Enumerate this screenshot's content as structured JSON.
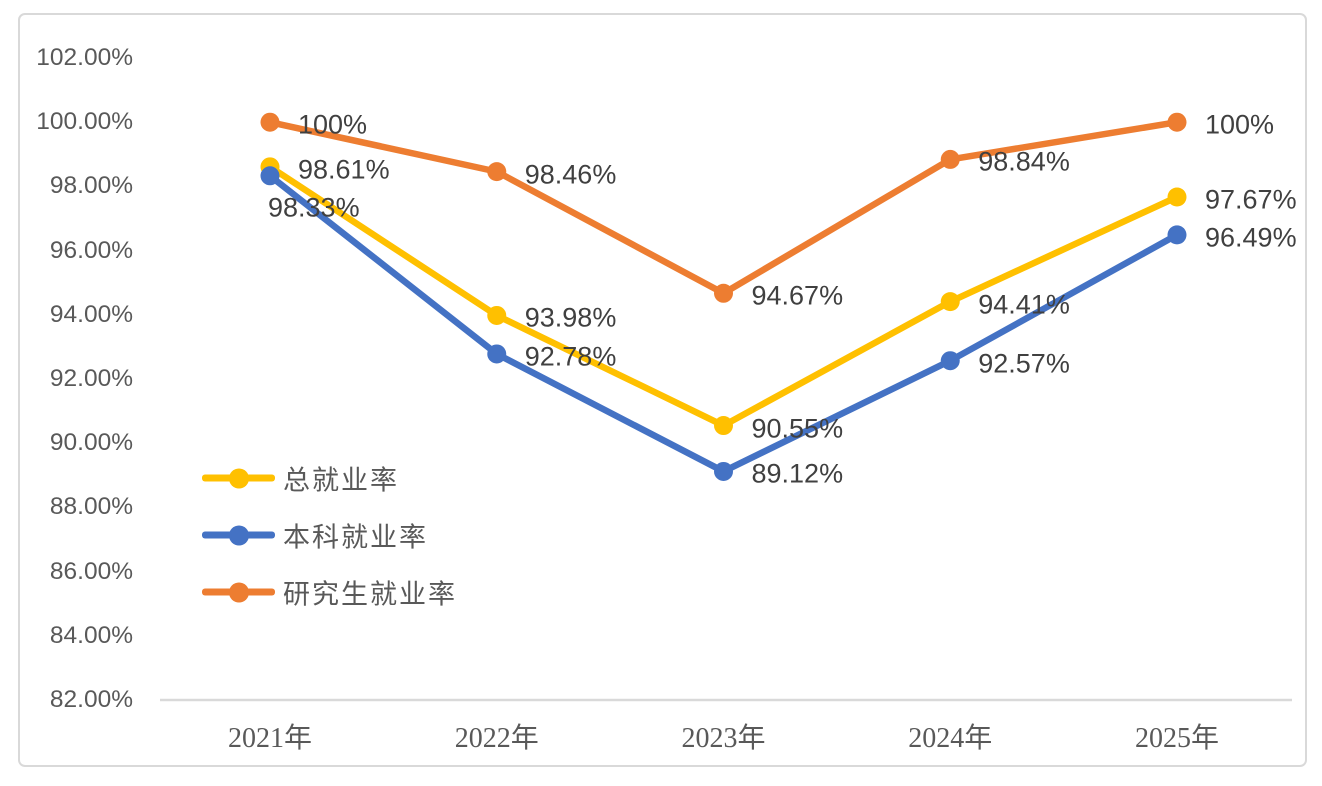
{
  "chart_data": {
    "type": "line",
    "title": "",
    "categories": [
      "2021年",
      "2022年",
      "2023年",
      "2024年",
      "2025年"
    ],
    "series": [
      {
        "name": "总就业率",
        "color": "#FFC000",
        "values": [
          98.61,
          93.98,
          90.55,
          94.41,
          97.67
        ],
        "data_labels": [
          "98.61%",
          "93.98%",
          "90.55%",
          "94.41%",
          "97.67%"
        ]
      },
      {
        "name": "本科就业率",
        "color": "#4472C4",
        "values": [
          98.33,
          92.78,
          89.12,
          92.57,
          96.49
        ],
        "data_labels": [
          "98.33%",
          "92.78%",
          "89.12%",
          "92.57%",
          "96.49%"
        ]
      },
      {
        "name": "研究生就业率",
        "color": "#ED7D31",
        "values": [
          100,
          98.46,
          94.67,
          98.84,
          100
        ],
        "data_labels": [
          "100%",
          "98.46%",
          "94.67%",
          "98.84%",
          "100%"
        ]
      }
    ],
    "y_axis": {
      "min": 82,
      "max": 102,
      "step": 2,
      "tick_labels": [
        "102.00%",
        "100.00%",
        "98.00%",
        "96.00%",
        "94.00%",
        "92.00%",
        "90.00%",
        "88.00%",
        "86.00%",
        "84.00%",
        "82.00%"
      ]
    },
    "x_axis": {
      "tick_labels": [
        "2021年",
        "2022年",
        "2023年",
        "2024年",
        "2025年"
      ]
    },
    "legend": {
      "position": "middle-left",
      "entries": [
        "总就业率",
        "本科就业率",
        "研究生就业率"
      ]
    },
    "grid": false,
    "styles": {
      "background": "#FFFFFF",
      "frame_border_color": "#D9D9D9",
      "axis_line_color": "#D9D9D9",
      "axis_text_color": "#595959",
      "data_label_color": "#404040"
    }
  }
}
